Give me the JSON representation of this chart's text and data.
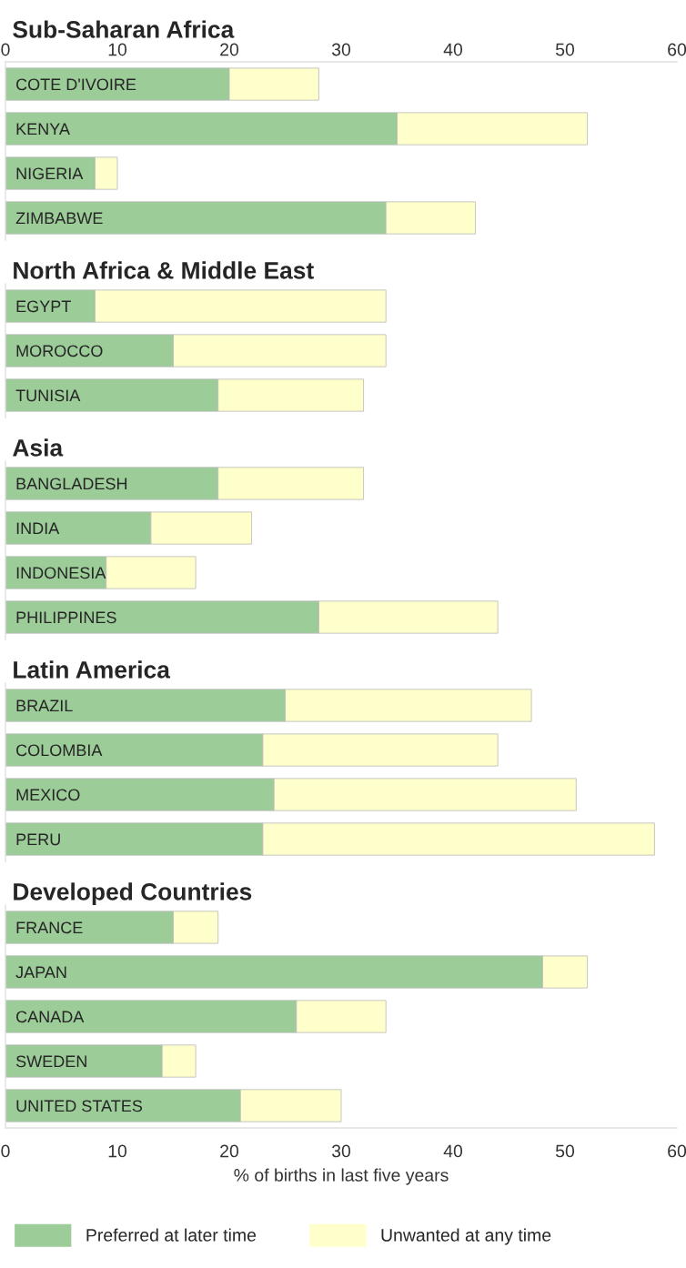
{
  "chart_data": [
    {
      "type": "bar",
      "orientation": "horizontal",
      "stacked": true,
      "title": "Sub-Saharan Africa",
      "categories": [
        "COTE D'IVOIRE",
        "KENYA",
        "NIGERIA",
        "ZIMBABWE"
      ],
      "series": [
        {
          "color": "#9ccc98",
          "values": [
            20,
            35,
            8,
            34
          ]
        },
        {
          "color": "#ffffcc",
          "values": [
            8,
            17,
            2,
            8
          ]
        }
      ],
      "xlim": [
        0,
        60
      ],
      "xticks": [
        0,
        10,
        20,
        30,
        40,
        50,
        60
      ]
    },
    {
      "type": "bar",
      "orientation": "horizontal",
      "stacked": true,
      "title": "North Africa & Middle East",
      "categories": [
        "EGYPT",
        "MOROCCO",
        "TUNISIA"
      ],
      "series": [
        {
          "color": "#9ccc98",
          "values": [
            8,
            15,
            19
          ]
        },
        {
          "color": "#ffffcc",
          "values": [
            26,
            19,
            13
          ]
        }
      ],
      "xlim": [
        0,
        60
      ],
      "tick_labels": "y"
    },
    {
      "type": "bar",
      "orientation": "horizontal",
      "stacked": true,
      "title": "Asia",
      "categories": [
        "BANGLADESH",
        "INDIA",
        "INDONESIA",
        "PHILIPPINES"
      ],
      "series": [
        {
          "color": "#9ccc98",
          "values": [
            19,
            13,
            9,
            28
          ]
        },
        {
          "color": "#ffffcc",
          "values": [
            13,
            9,
            8,
            16
          ]
        }
      ],
      "xlim": [
        0,
        60
      ],
      "tick_labels": "y"
    },
    {
      "type": "bar",
      "orientation": "horizontal",
      "stacked": true,
      "title": "Latin America",
      "categories": [
        "BRAZIL",
        "COLOMBIA",
        "MEXICO",
        "PERU"
      ],
      "series": [
        {
          "color": "#9ccc98",
          "values": [
            25,
            23,
            24,
            23
          ]
        },
        {
          "color": "#ffffcc",
          "values": [
            22,
            21,
            27,
            35
          ]
        }
      ],
      "xlim": [
        0,
        60
      ],
      "tick_labels": "y"
    },
    {
      "type": "bar",
      "orientation": "horizontal",
      "stacked": true,
      "title": "Developed Countries",
      "categories": [
        "FRANCE",
        "JAPAN",
        "CANADA",
        "SWEDEN",
        "UNITED STATES"
      ],
      "series": [
        {
          "name": "Preferred at later time",
          "color": "#9ccc98",
          "values": [
            15,
            48,
            26,
            14,
            21
          ]
        },
        {
          "name": "Unwanted at any time",
          "color": "#ffffcc",
          "values": [
            4,
            4,
            8,
            3,
            9
          ]
        }
      ],
      "xlim": [
        0,
        60
      ],
      "xticks": [
        0,
        10,
        20,
        30,
        40,
        50,
        60
      ],
      "xlabel": "% of births in last five years",
      "legend": "bottom"
    }
  ]
}
